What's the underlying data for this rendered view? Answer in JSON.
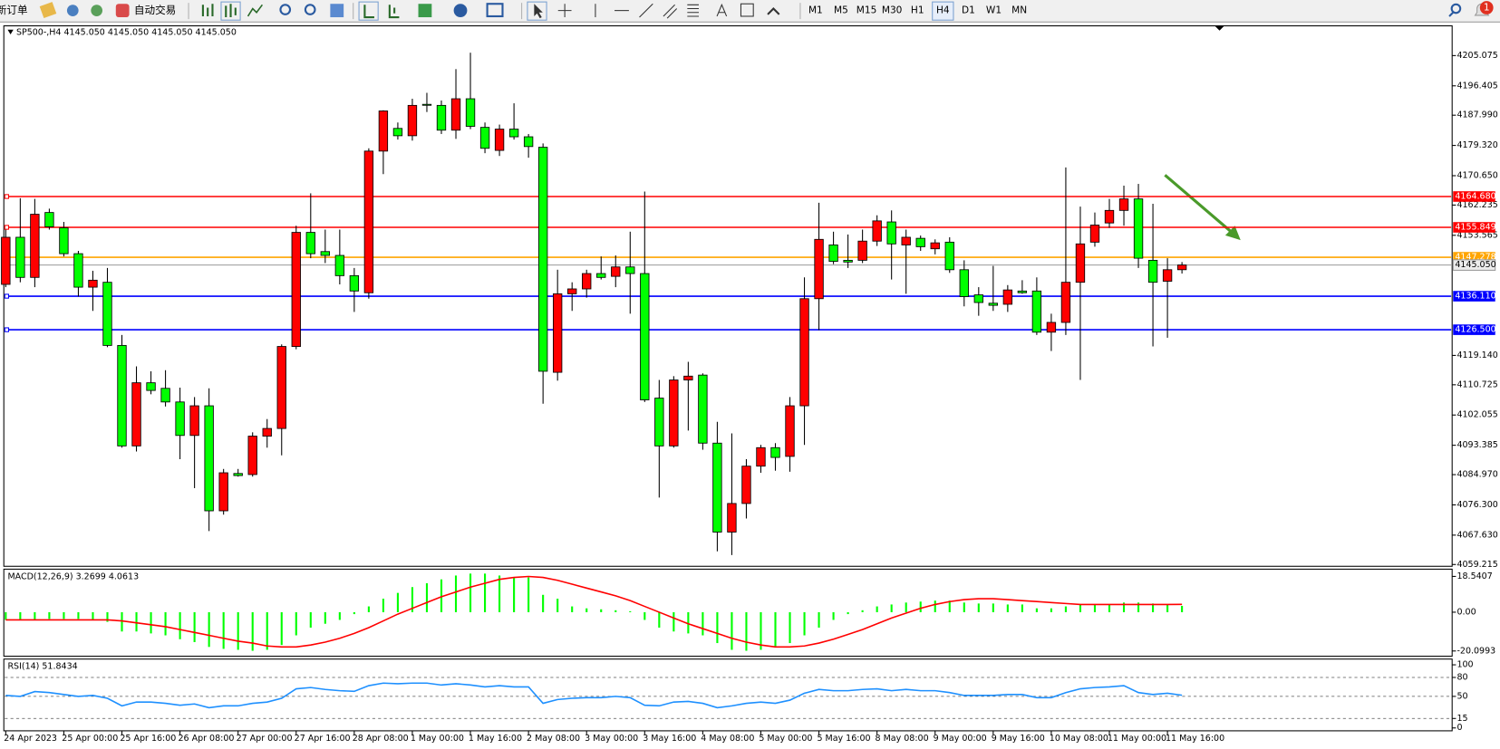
{
  "toolbar": {
    "new_order": "新订单",
    "auto_trading": "自动交易",
    "timeframes": [
      "M1",
      "M5",
      "M15",
      "M30",
      "H1",
      "H4",
      "D1",
      "W1",
      "MN"
    ],
    "active_timeframe": "H4",
    "notification_count": "1"
  },
  "chart_data": [
    {
      "type": "candlestick",
      "title": "SP500-,H4  4145.050 4145.050 4145.050 4145.050",
      "categories": [
        "24 Apr 2023",
        null,
        null,
        null,
        "25 Apr 00:00",
        null,
        null,
        null,
        "25 Apr 16:00",
        null,
        null,
        null,
        "26 Apr 08:00",
        null,
        null,
        null,
        "27 Apr 00:00",
        null,
        null,
        null,
        "27 Apr 16:00",
        null,
        null,
        null,
        "28 Apr 08:00",
        null,
        null,
        null,
        "1 May 00:00",
        null,
        null,
        null,
        "1 May 16:00",
        null,
        null,
        null,
        "2 May 08:00",
        null,
        null,
        null,
        "3 May 00:00",
        null,
        null,
        null,
        "3 May 16:00",
        null,
        null,
        null,
        "4 May 08:00",
        null,
        null,
        null,
        "5 May 00:00",
        null,
        null,
        null,
        "5 May 16:00",
        null,
        null,
        null,
        "8 May 08:00",
        null,
        null,
        null,
        "9 May 00:00",
        null,
        null,
        null,
        "9 May 16:00",
        null,
        null,
        null,
        "10 May 08:00",
        null,
        null,
        null,
        "11 May 00:00",
        null,
        null,
        null,
        "11 May 16:00",
        null
      ],
      "open": [
        4139.5,
        4153.0,
        4141.5,
        4160.1,
        4155.7,
        4148.3,
        4138.7,
        4140.1,
        4122.0,
        4093.2,
        4111.3,
        4109.7,
        4105.8,
        4096.2,
        4104.7,
        4074.6,
        4085.3,
        4085.0,
        4096.0,
        4098.2,
        4121.7,
        4154.4,
        4148.9,
        4147.8,
        4142.0,
        4137.1,
        4177.7,
        4184.2,
        4182.1,
        4191.1,
        4190.8,
        4183.7,
        4192.7,
        4184.5,
        4177.9,
        4184.0,
        4181.8,
        4178.8,
        4114.3,
        4136.8,
        4138.2,
        4142.6,
        4141.8,
        4144.5,
        4142.6,
        4106.9,
        4093.2,
        4112.1,
        4113.5,
        4094.0,
        4068.5,
        4076.7,
        4087.4,
        4092.7,
        4090.2,
        4104.7,
        4135.4,
        4150.8,
        4146.4,
        4146.4,
        4151.9,
        4157.4,
        4150.8,
        4152.7,
        4149.7,
        4151.6,
        4143.7,
        4136.5,
        4134.1,
        4133.8,
        4137.6,
        4137.6,
        4125.8,
        4128.6,
        4140.1,
        4151.6,
        4157.1,
        4160.7,
        4164.0,
        4146.4,
        4140.4,
        4143.7
      ],
      "high": [
        4155.2,
        4164.2,
        4164.0,
        4161.2,
        4157.4,
        4149.1,
        4143.4,
        4144.2,
        4125.0,
        4116.0,
        4114.6,
        4114.9,
        4109.9,
        4107.2,
        4109.7,
        4086.6,
        4086.6,
        4097.1,
        4100.9,
        4122.3,
        4156.3,
        4165.6,
        4155.2,
        4155.2,
        4144.2,
        4178.5,
        4189.4,
        4185.9,
        4192.7,
        4194.4,
        4192.2,
        4201.2,
        4205.9,
        4185.9,
        4185.3,
        4191.4,
        4182.6,
        4179.9,
        4143.7,
        4140.1,
        4143.7,
        4147.5,
        4147.8,
        4154.6,
        4166.1,
        4112.1,
        4113.2,
        4117.3,
        4114.0,
        4100.1,
        4096.8,
        4089.4,
        4093.5,
        4094.0,
        4107.2,
        4141.5,
        4162.9,
        4154.6,
        4153.8,
        4155.2,
        4159.3,
        4160.7,
        4155.2,
        4153.5,
        4152.4,
        4153.0,
        4146.4,
        4138.7,
        4144.8,
        4139.3,
        4140.7,
        4141.5,
        4131.1,
        4173.0,
        4161.8,
        4160.1,
        4164.0,
        4167.8,
        4168.3,
        4162.6,
        4147.0,
        4145.9
      ],
      "low": [
        4138.7,
        4140.1,
        4138.7,
        4155.2,
        4147.5,
        4136.0,
        4131.9,
        4121.5,
        4092.7,
        4091.6,
        4108.0,
        4104.5,
        4089.4,
        4081.1,
        4068.8,
        4073.5,
        4084.4,
        4084.4,
        4092.7,
        4090.5,
        4120.9,
        4147.0,
        4145.6,
        4139.5,
        4131.6,
        4135.4,
        4171.1,
        4181.0,
        4180.7,
        4188.9,
        4182.6,
        4181.2,
        4184.0,
        4177.1,
        4176.3,
        4181.0,
        4175.8,
        4105.3,
        4111.9,
        4131.9,
        4135.7,
        4140.9,
        4138.7,
        4131.1,
        4105.8,
        4078.4,
        4092.7,
        4097.6,
        4092.1,
        4063.0,
        4061.9,
        4072.4,
        4085.5,
        4086.1,
        4085.8,
        4093.5,
        4126.4,
        4145.3,
        4144.2,
        4145.6,
        4150.5,
        4140.9,
        4136.8,
        4149.1,
        4148.1,
        4142.8,
        4133.2,
        4130.5,
        4131.9,
        4131.6,
        4136.8,
        4125.0,
        4120.4,
        4125.0,
        4112.1,
        4150.3,
        4155.7,
        4156.3,
        4144.2,
        4121.7,
        4124.2,
        4142.6
      ],
      "close": [
        4153.0,
        4141.5,
        4159.6,
        4156.0,
        4148.3,
        4138.7,
        4140.7,
        4122.0,
        4093.2,
        4111.3,
        4109.1,
        4105.8,
        4096.2,
        4104.7,
        4074.6,
        4085.5,
        4084.7,
        4096.0,
        4098.2,
        4121.7,
        4154.4,
        4148.3,
        4147.8,
        4142.0,
        4137.6,
        4177.7,
        4189.2,
        4182.1,
        4190.8,
        4191.0,
        4183.7,
        4192.7,
        4184.8,
        4178.5,
        4184.0,
        4181.8,
        4179.0,
        4114.6,
        4136.8,
        4138.2,
        4142.6,
        4141.5,
        4144.5,
        4142.6,
        4106.4,
        4093.2,
        4112.1,
        4113.2,
        4094.0,
        4068.5,
        4076.7,
        4087.4,
        4092.7,
        4089.9,
        4104.7,
        4135.4,
        4152.4,
        4146.1,
        4145.9,
        4151.9,
        4157.7,
        4151.1,
        4153.0,
        4150.3,
        4151.4,
        4143.7,
        4136.0,
        4134.3,
        4133.5,
        4137.9,
        4137.1,
        4125.8,
        4128.6,
        4140.1,
        4151.1,
        4156.5,
        4160.7,
        4164.0,
        4147.0,
        4140.1,
        4143.7,
        4145.05
      ],
      "up_color": "#ff0000",
      "down_color": "#00ff00",
      "ylim": [
        4058.7,
        4213.6
      ],
      "yticks": [
        4205.075,
        4196.405,
        {
          "value": 4187.99,
          "label": "4187.990"
        },
        {
          "value": 4179.32,
          "label": "4179.320"
        },
        {
          "value": 4170.65,
          "label": "4170.650"
        },
        4162.235,
        4153.565,
        {
          "value": 4119.14,
          "label": "4119.140"
        },
        4110.725,
        4102.055,
        4093.385,
        {
          "value": 4084.97,
          "label": "4084.970"
        },
        {
          "value": 4076.3,
          "label": "4076.300"
        },
        {
          "value": 4067.63,
          "label": "4067.630"
        },
        4059.215
      ],
      "levels": [
        {
          "value": 4164.68,
          "label": "4164.680",
          "color": "#ff0000"
        },
        {
          "value": 4155.849,
          "label": "4155.849",
          "color": "#ff0000"
        },
        {
          "value": 4147.278,
          "label": "4147.278",
          "color": "#ffa500"
        },
        {
          "value": 4136.11,
          "label": "4136.110",
          "color": "#0000ff"
        },
        {
          "value": 4126.5,
          "label": "4126.500",
          "color": "#0000ff"
        }
      ],
      "current_price": {
        "value": 4145.05,
        "label": "4145.050",
        "color": "#9a9a9a"
      }
    },
    {
      "type": "macd",
      "title": "MACD(12,26,9) 3.2699 4.0613",
      "histogram": {
        "color": "#00ff00",
        "values": [
          -4,
          -4,
          -4,
          -3.5,
          -3.5,
          -3.5,
          -4,
          -5,
          -10,
          -10,
          -11,
          -12,
          -14,
          -15.5,
          -18,
          -19,
          -19.5,
          -20,
          -19.5,
          -17,
          -12,
          -8,
          -6,
          -4,
          -1,
          3,
          7,
          10,
          13,
          15,
          17,
          19,
          20,
          20,
          19,
          18,
          18,
          9,
          7,
          3,
          2,
          1.5,
          1,
          0.5,
          -4,
          -8,
          -10,
          -11,
          -12,
          -16,
          -19.5,
          -20,
          -19.5,
          -18,
          -16,
          -12,
          -8,
          -4,
          -1,
          1,
          3,
          4,
          5,
          5.5,
          6,
          6,
          5,
          4.5,
          4.5,
          4,
          4,
          2,
          2,
          3,
          4,
          4,
          4,
          5,
          5,
          4.5,
          4,
          3.2699
        ]
      },
      "signal": {
        "color": "#ff0000",
        "values": [
          -4,
          -4,
          -4,
          -4,
          -4,
          -4,
          -4,
          -4,
          -4.5,
          -5.5,
          -6.5,
          -7.5,
          -9,
          -10.5,
          -12,
          -13.5,
          -15,
          -16,
          -17.5,
          -18,
          -18,
          -17,
          -15.5,
          -13.5,
          -11,
          -8,
          -4.5,
          -1,
          2,
          5,
          8,
          10.5,
          13,
          15,
          17,
          18,
          18.5,
          18,
          16.5,
          14.5,
          12.5,
          10.5,
          8.5,
          6,
          3,
          0,
          -3,
          -6,
          -8.5,
          -11,
          -13.5,
          -15.5,
          -17,
          -18,
          -18,
          -17.5,
          -16,
          -14,
          -11.5,
          -9,
          -6,
          -3,
          -0.5,
          2,
          4,
          5.5,
          6.5,
          7,
          7,
          6.5,
          6,
          5.5,
          5,
          4.5,
          4,
          4,
          4,
          4,
          4,
          4,
          4,
          4.0613
        ]
      },
      "ylim": [
        -22.8,
        21.8
      ],
      "yticks": [
        18.5407,
        {
          "value": 0,
          "label": "0.00"
        },
        -20.0993
      ]
    },
    {
      "type": "line",
      "title": "RSI(14) 51.8434",
      "series": [
        {
          "color": "#1e90ff",
          "values": [
            51.5,
            50,
            57.6,
            56,
            53,
            50,
            51.5,
            47,
            35,
            41,
            41,
            39,
            36,
            38,
            32,
            35,
            35,
            39,
            41,
            47,
            62,
            64,
            61,
            59,
            58,
            67,
            71,
            70,
            71,
            71,
            68,
            70,
            68,
            65,
            67,
            65,
            65,
            39,
            45,
            47,
            48,
            48,
            50,
            48,
            36,
            35,
            41,
            42,
            39,
            32,
            35,
            39,
            41,
            39,
            44,
            55,
            61,
            59,
            59,
            61,
            62,
            59,
            61,
            59,
            59,
            56,
            51.5,
            51.5,
            51.5,
            53,
            53,
            48,
            48,
            56,
            62,
            64,
            65,
            67,
            56,
            53,
            55,
            51.8434
          ]
        }
      ],
      "ylim": [
        0,
        100
      ],
      "yticks": [
        100,
        80,
        50,
        15,
        0
      ]
    }
  ]
}
